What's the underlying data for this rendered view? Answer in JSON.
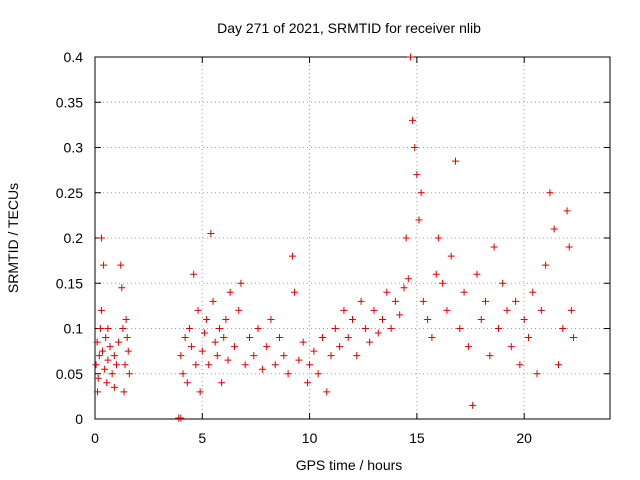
{
  "chart_data": {
    "type": "scatter",
    "title": "Day 271 of 2021, SRMTID for receiver nlib",
    "xlabel": "GPS time / hours",
    "ylabel": "SRMTID / TECUs",
    "xlim": [
      0,
      24
    ],
    "ylim": [
      0,
      0.4
    ],
    "x_ticks": [
      0,
      5,
      10,
      15,
      20
    ],
    "y_ticks": [
      0,
      0.05,
      0.1,
      0.15,
      0.2,
      0.25,
      0.3,
      0.35,
      0.4
    ],
    "x_tick_labels": [
      "0",
      "5",
      "10",
      "15",
      "20"
    ],
    "y_tick_labels": [
      "0",
      "0.05",
      "0.1",
      "0.15",
      "0.2",
      "0.25",
      "0.3",
      "0.35",
      "0.4"
    ],
    "grid": true,
    "marker": "plus",
    "color": "#e00000",
    "series": [
      {
        "points": [
          [
            0.05,
            0.06
          ],
          [
            0.1,
            0.085
          ],
          [
            0.15,
            0.045
          ],
          [
            0.2,
            0.07
          ],
          [
            0.25,
            0.1
          ],
          [
            0.3,
            0.2
          ],
          [
            0.35,
            0.075
          ],
          [
            0.4,
            0.17
          ],
          [
            0.45,
            0.055
          ],
          [
            0.5,
            0.09
          ],
          [
            0.55,
            0.04
          ],
          [
            0.6,
            0.065
          ],
          [
            0.7,
            0.08
          ],
          [
            0.8,
            0.05
          ],
          [
            0.9,
            0.07
          ],
          [
            1.0,
            0.06
          ],
          [
            1.1,
            0.085
          ],
          [
            1.2,
            0.17
          ],
          [
            1.25,
            0.145
          ],
          [
            1.3,
            0.1
          ],
          [
            1.35,
            0.03
          ],
          [
            1.4,
            0.06
          ],
          [
            1.5,
            0.09
          ],
          [
            1.55,
            0.075
          ],
          [
            1.6,
            0.05
          ],
          [
            0.12,
            0.03
          ],
          [
            0.3,
            0.12
          ],
          [
            0.6,
            0.1
          ],
          [
            0.9,
            0.035
          ],
          [
            1.45,
            0.11
          ],
          [
            3.9,
            0.001
          ],
          [
            4.0,
            0.001
          ],
          [
            4.0,
            0.07
          ],
          [
            4.1,
            0.05
          ],
          [
            4.2,
            0.09
          ],
          [
            4.3,
            0.04
          ],
          [
            4.4,
            0.1
          ],
          [
            4.5,
            0.08
          ],
          [
            4.6,
            0.16
          ],
          [
            4.7,
            0.06
          ],
          [
            4.8,
            0.12
          ],
          [
            4.9,
            0.03
          ],
          [
            5.0,
            0.075
          ],
          [
            5.1,
            0.095
          ],
          [
            5.2,
            0.11
          ],
          [
            5.3,
            0.06
          ],
          [
            5.4,
            0.205
          ],
          [
            5.5,
            0.13
          ],
          [
            5.6,
            0.085
          ],
          [
            5.7,
            0.07
          ],
          [
            5.8,
            0.1
          ],
          [
            5.9,
            0.04
          ],
          [
            6.0,
            0.09
          ],
          [
            6.1,
            0.11
          ],
          [
            6.2,
            0.065
          ],
          [
            6.3,
            0.14
          ],
          [
            6.5,
            0.08
          ],
          [
            6.7,
            0.12
          ],
          [
            6.8,
            0.15
          ],
          [
            7.0,
            0.06
          ],
          [
            7.2,
            0.09
          ],
          [
            7.4,
            0.07
          ],
          [
            7.6,
            0.1
          ],
          [
            7.8,
            0.055
          ],
          [
            8.0,
            0.08
          ],
          [
            8.2,
            0.11
          ],
          [
            8.4,
            0.06
          ],
          [
            8.6,
            0.09
          ],
          [
            8.8,
            0.07
          ],
          [
            9.0,
            0.05
          ],
          [
            9.2,
            0.18
          ],
          [
            9.3,
            0.14
          ],
          [
            9.5,
            0.065
          ],
          [
            9.7,
            0.085
          ],
          [
            9.9,
            0.04
          ],
          [
            10.0,
            0.06
          ],
          [
            10.2,
            0.075
          ],
          [
            10.4,
            0.05
          ],
          [
            10.6,
            0.09
          ],
          [
            10.8,
            0.03
          ],
          [
            11.0,
            0.07
          ],
          [
            11.2,
            0.1
          ],
          [
            11.4,
            0.08
          ],
          [
            11.6,
            0.12
          ],
          [
            11.8,
            0.09
          ],
          [
            12.0,
            0.11
          ],
          [
            12.2,
            0.07
          ],
          [
            12.4,
            0.13
          ],
          [
            12.6,
            0.1
          ],
          [
            12.8,
            0.085
          ],
          [
            13.0,
            0.12
          ],
          [
            13.2,
            0.095
          ],
          [
            13.4,
            0.11
          ],
          [
            13.6,
            0.14
          ],
          [
            13.8,
            0.1
          ],
          [
            14.0,
            0.13
          ],
          [
            14.2,
            0.115
          ],
          [
            14.4,
            0.145
          ],
          [
            14.5,
            0.2
          ],
          [
            14.6,
            0.155
          ],
          [
            14.7,
            0.4
          ],
          [
            14.8,
            0.33
          ],
          [
            14.9,
            0.3
          ],
          [
            15.0,
            0.27
          ],
          [
            15.1,
            0.22
          ],
          [
            15.2,
            0.25
          ],
          [
            15.3,
            0.13
          ],
          [
            15.5,
            0.11
          ],
          [
            15.7,
            0.09
          ],
          [
            15.9,
            0.16
          ],
          [
            16.0,
            0.2
          ],
          [
            16.2,
            0.15
          ],
          [
            16.4,
            0.12
          ],
          [
            16.6,
            0.18
          ],
          [
            16.8,
            0.285
          ],
          [
            17.0,
            0.1
          ],
          [
            17.2,
            0.14
          ],
          [
            17.4,
            0.08
          ],
          [
            17.6,
            0.015
          ],
          [
            17.8,
            0.16
          ],
          [
            18.0,
            0.11
          ],
          [
            18.2,
            0.13
          ],
          [
            18.4,
            0.07
          ],
          [
            18.6,
            0.19
          ],
          [
            18.8,
            0.1
          ],
          [
            19.0,
            0.15
          ],
          [
            19.2,
            0.12
          ],
          [
            19.4,
            0.08
          ],
          [
            19.6,
            0.13
          ],
          [
            19.8,
            0.06
          ],
          [
            20.0,
            0.11
          ],
          [
            20.2,
            0.09
          ],
          [
            20.4,
            0.14
          ],
          [
            20.6,
            0.05
          ],
          [
            20.8,
            0.12
          ],
          [
            21.0,
            0.17
          ],
          [
            21.2,
            0.25
          ],
          [
            21.4,
            0.21
          ],
          [
            21.6,
            0.06
          ],
          [
            21.8,
            0.1
          ],
          [
            22.0,
            0.23
          ],
          [
            22.1,
            0.19
          ],
          [
            22.2,
            0.12
          ],
          [
            22.3,
            0.09
          ]
        ]
      }
    ]
  }
}
